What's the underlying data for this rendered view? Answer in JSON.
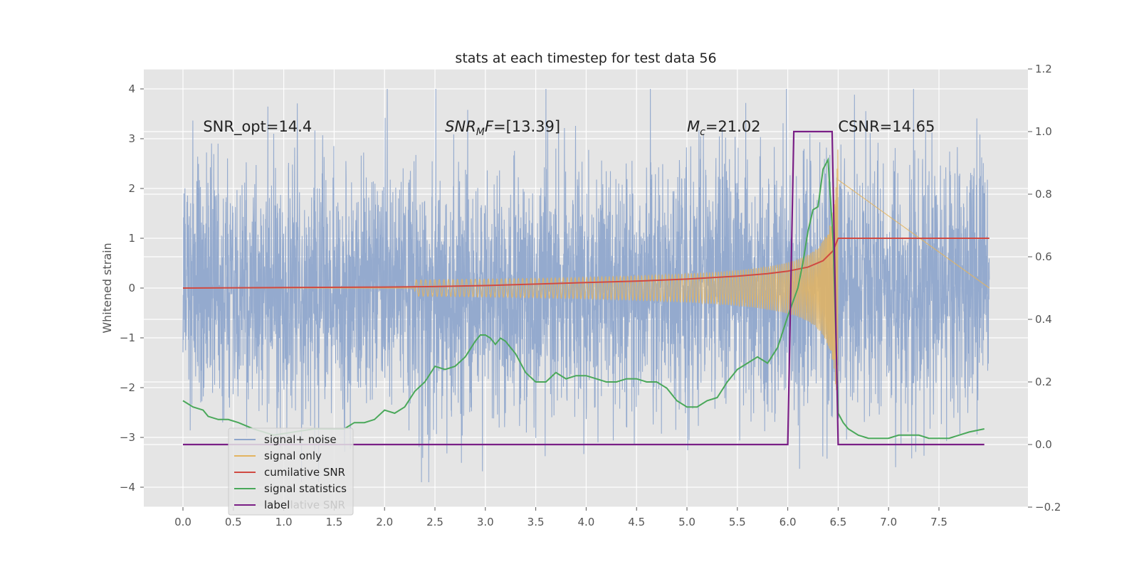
{
  "chart_data": {
    "type": "line",
    "title": "stats at each timestep for test data 56",
    "ylabel": "Whitened strain",
    "xlabel": "",
    "xlim": [
      -0.39,
      8.39
    ],
    "ylim": [
      -4.4,
      4.4
    ],
    "y2lim": [
      -0.2,
      1.2
    ],
    "grid": true,
    "x_ticks": [
      "0.0",
      "0.5",
      "1.0",
      "1.5",
      "2.0",
      "2.5",
      "3.0",
      "3.5",
      "4.0",
      "4.5",
      "5.0",
      "5.5",
      "6.0",
      "6.5",
      "7.0",
      "7.5"
    ],
    "y_ticks": [
      "4",
      "3",
      "2",
      "1",
      "0",
      "−1",
      "−2",
      "−3",
      "−4"
    ],
    "y2_ticks": [
      "1.2",
      "1.0",
      "0.8",
      "0.6",
      "0.4",
      "0.2",
      "0.0",
      "−0.2"
    ],
    "annotations": [
      {
        "text": "SNR_opt=14.4",
        "x": 0.2,
        "y": 3.3
      },
      {
        "text_main": "SNR",
        "text_sub": "M",
        "text_rest": "F=[13.39]",
        "x": 2.6,
        "y": 3.3
      },
      {
        "text_main": "M",
        "text_sub": "c",
        "text_rest": "=21.02",
        "x": 5.0,
        "y": 3.3
      },
      {
        "text": "CSNR=14.65",
        "x": 6.5,
        "y": 3.3
      }
    ],
    "legend": {
      "location": "lower-left",
      "entries": [
        "signal+ noise",
        "signal only",
        "cumilative SNR",
        "signal statistics",
        "label"
      ],
      "hidden_entry": "cumilative SNR"
    },
    "series": [
      {
        "name": "signal+ noise",
        "axis": "left",
        "color": "#8fa6cc",
        "x_range": [
          0.0,
          8.0
        ],
        "amplitude_range": [
          -3.9,
          4.0
        ],
        "description_values": "dense gaussian noise, peaks about ±3.5"
      },
      {
        "name": "signal only",
        "axis": "left",
        "color": "#e3b460",
        "chirp": {
          "t_start": 2.3,
          "t_merge": 6.5,
          "peak_amplitude": 3.1
        }
      },
      {
        "name": "cumilative SNR",
        "axis": "left",
        "color": "#d04a42",
        "x": [
          0.0,
          1.0,
          2.0,
          2.5,
          3.0,
          3.5,
          4.0,
          4.5,
          5.0,
          5.5,
          5.8,
          6.0,
          6.2,
          6.35,
          6.45,
          6.5,
          8.0
        ],
        "y": [
          0.0,
          0.01,
          0.02,
          0.03,
          0.05,
          0.08,
          0.11,
          0.14,
          0.18,
          0.24,
          0.29,
          0.34,
          0.42,
          0.55,
          0.75,
          1.0,
          1.0
        ]
      },
      {
        "name": "signal statistics",
        "axis": "right",
        "color": "#4aa85a",
        "x": [
          0.0,
          0.1,
          0.2,
          0.25,
          0.35,
          0.45,
          0.55,
          0.7,
          0.9,
          1.1,
          1.3,
          1.5,
          1.6,
          1.7,
          1.8,
          1.9,
          2.0,
          2.1,
          2.2,
          2.3,
          2.4,
          2.5,
          2.6,
          2.7,
          2.8,
          2.9,
          2.95,
          3.0,
          3.05,
          3.1,
          3.15,
          3.2,
          3.25,
          3.3,
          3.4,
          3.5,
          3.6,
          3.7,
          3.8,
          3.9,
          4.0,
          4.1,
          4.2,
          4.3,
          4.4,
          4.5,
          4.6,
          4.7,
          4.8,
          4.9,
          5.0,
          5.1,
          5.2,
          5.3,
          5.4,
          5.5,
          5.6,
          5.7,
          5.8,
          5.9,
          6.0,
          6.1,
          6.15,
          6.2,
          6.25,
          6.3,
          6.35,
          6.4,
          6.45,
          6.5,
          6.55,
          6.6,
          6.7,
          6.8,
          6.9,
          7.0,
          7.1,
          7.2,
          7.3,
          7.4,
          7.5,
          7.6,
          7.7,
          7.8,
          7.95
        ],
        "y": [
          0.14,
          0.12,
          0.11,
          0.09,
          0.08,
          0.08,
          0.07,
          0.05,
          0.03,
          0.04,
          0.05,
          0.05,
          0.05,
          0.07,
          0.07,
          0.08,
          0.11,
          0.1,
          0.12,
          0.17,
          0.2,
          0.25,
          0.24,
          0.25,
          0.28,
          0.33,
          0.35,
          0.35,
          0.34,
          0.32,
          0.34,
          0.33,
          0.31,
          0.29,
          0.23,
          0.2,
          0.2,
          0.23,
          0.21,
          0.22,
          0.22,
          0.21,
          0.2,
          0.2,
          0.21,
          0.21,
          0.2,
          0.2,
          0.18,
          0.14,
          0.12,
          0.12,
          0.14,
          0.15,
          0.2,
          0.24,
          0.26,
          0.28,
          0.26,
          0.31,
          0.41,
          0.5,
          0.58,
          0.68,
          0.75,
          0.76,
          0.88,
          0.91,
          0.65,
          0.1,
          0.07,
          0.05,
          0.03,
          0.02,
          0.02,
          0.02,
          0.03,
          0.03,
          0.03,
          0.02,
          0.02,
          0.02,
          0.03,
          0.04,
          0.05
        ]
      },
      {
        "name": "label",
        "axis": "right",
        "color": "#7a1f86",
        "x": [
          0.0,
          6.0,
          6.06,
          6.44,
          6.5,
          7.95
        ],
        "y": [
          0.0,
          0.0,
          1.0,
          1.0,
          0.0,
          0.0
        ]
      }
    ]
  }
}
